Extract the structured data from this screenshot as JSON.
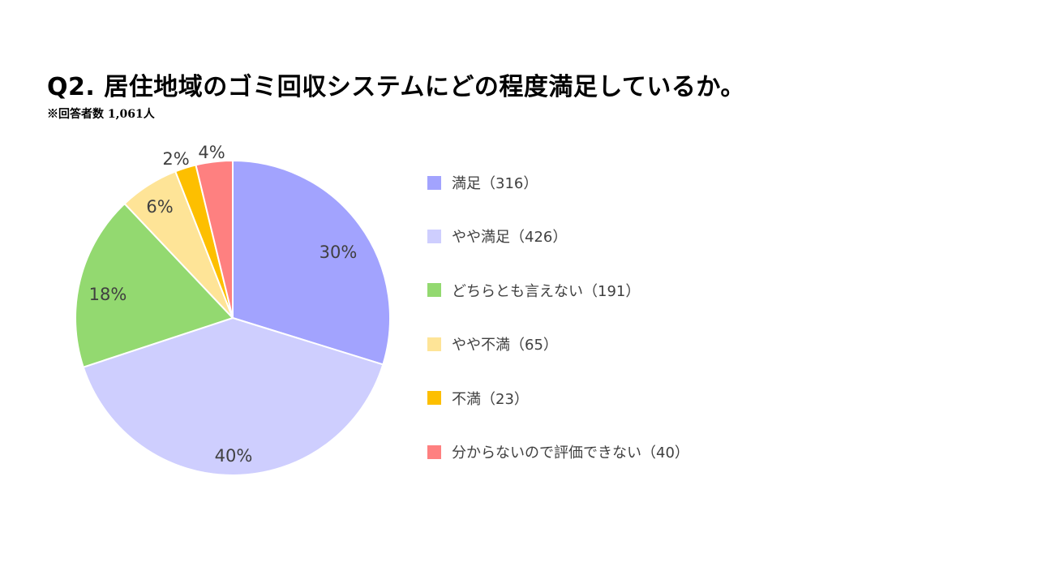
{
  "title": "Q2.  居住地域のゴミ回収システムにどの程度満足しているか。",
  "subtitle": "※回答者数 1,061人",
  "chart_data": {
    "type": "pie",
    "title": "Q2.  居住地域のゴミ回収システムにどの程度満足しているか。",
    "subtitle": "※回答者数 1,061人",
    "start": "12 o'clock, clockwise",
    "legend_position": "right",
    "slices": [
      {
        "legend": "満足（316）",
        "count": 316,
        "percent_label": "30%",
        "color": "#A2A3FE"
      },
      {
        "legend": "やや満足（426）",
        "count": 426,
        "percent_label": "40%",
        "color": "#CECEFE"
      },
      {
        "legend": "どちらとも言えない（191）",
        "count": 191,
        "percent_label": "18%",
        "color": "#93D970"
      },
      {
        "legend": "やや不満（65）",
        "count": 65,
        "percent_label": "6%",
        "color": "#FEE497"
      },
      {
        "legend": "不満（23）",
        "count": 23,
        "percent_label": "2%",
        "color": "#FDBF00"
      },
      {
        "legend": "分からないので評価できない（40）",
        "count": 40,
        "percent_label": "4%",
        "color": "#FE8080"
      }
    ]
  }
}
